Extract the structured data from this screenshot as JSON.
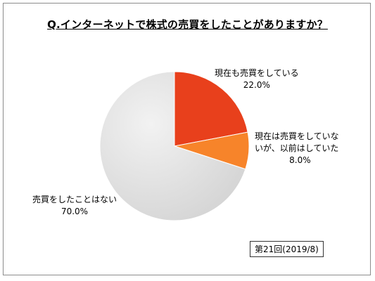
{
  "title": "Q.インターネットで株式の売買をしたことがありますか？",
  "note": "第21回(2019/8)",
  "chart_data": {
    "type": "pie",
    "title": "Q.インターネットで株式の売買をしたことがありますか？",
    "slices": [
      {
        "label": "現在も売買をしている",
        "value": 22.0,
        "display": "22.0%",
        "color": "#e8401c"
      },
      {
        "label_line1": "現在は売買をしていな",
        "label_line2": "いが、以前はしていた",
        "label": "現在は売買をしていないが、以前はしていた",
        "value": 8.0,
        "display": "8.0%",
        "color": "#f7842a"
      },
      {
        "label": "売買をしたことはない",
        "value": 70.0,
        "display": "70.0%",
        "color": "#e3e3e3"
      }
    ],
    "legend": "none"
  }
}
